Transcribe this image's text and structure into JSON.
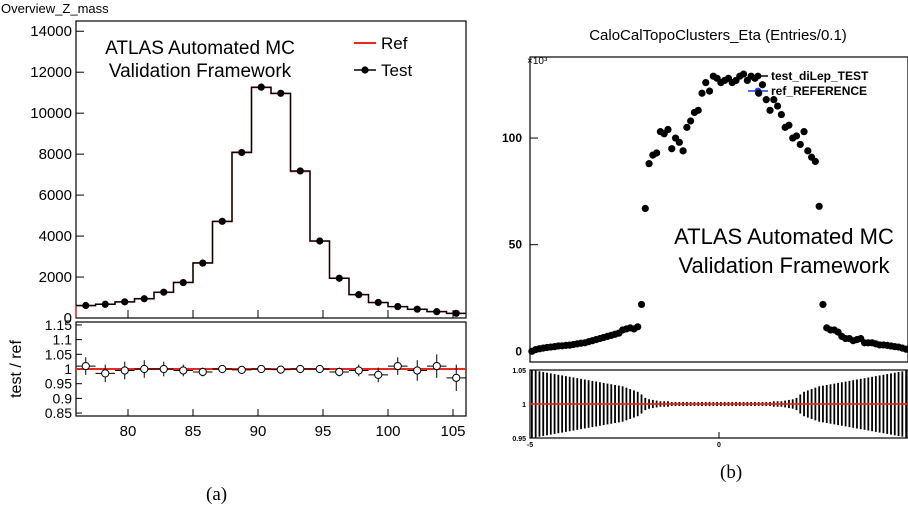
{
  "chart_data": [
    {
      "type": "line",
      "panel_caption": "(a)",
      "title": "Overview_Z_mass",
      "watermark": [
        "ATLAS Automated MC",
        "Validation Framework"
      ],
      "legend": [
        {
          "name": "Ref",
          "style": "line",
          "color": "#e8291c"
        },
        {
          "name": "Test",
          "style": "marker",
          "color": "#000000"
        }
      ],
      "legend_position": "top-right",
      "x": [
        76.75,
        78.25,
        79.75,
        81.25,
        82.75,
        84.25,
        85.75,
        87.25,
        88.75,
        90.25,
        91.75,
        93.25,
        94.75,
        96.25,
        97.75,
        99.25,
        100.75,
        102.25,
        103.75,
        105.25
      ],
      "xlim": [
        76,
        106
      ],
      "x_ticks": [
        80,
        85,
        90,
        95,
        100,
        105
      ],
      "main": {
        "ylim": [
          0,
          14500
        ],
        "y_ticks": [
          0,
          2000,
          4000,
          6000,
          8000,
          10000,
          12000,
          14000
        ],
        "series": [
          {
            "name": "Ref",
            "values": [
              600,
              680,
              780,
              950,
              1250,
              1750,
              2700,
              4700,
              8100,
              11250,
              10950,
              7150,
              3750,
              1950,
              1150,
              750,
              550,
              420,
              320,
              220
            ]
          },
          {
            "name": "Test",
            "values": [
              610,
              670,
              790,
              940,
              1260,
              1730,
              2680,
              4720,
              8080,
              11270,
              10970,
              7180,
              3760,
              1940,
              1140,
              760,
              560,
              430,
              310,
              230
            ]
          }
        ]
      },
      "ratio": {
        "ylabel": "test / ref",
        "ylim": [
          0.84,
          1.16
        ],
        "y_ticks": [
          "0.85",
          "0.9",
          "0.95",
          "1",
          "1.05",
          "1.1",
          "1.15"
        ],
        "reference_line": 1,
        "values": [
          1.01,
          0.985,
          0.995,
          1.0,
          1.0,
          0.995,
          0.99,
          1.0,
          0.997,
          1.0,
          0.998,
          1.0,
          1.0,
          0.99,
          0.995,
          0.98,
          1.01,
          0.995,
          1.01,
          0.97
        ],
        "errors": [
          0.03,
          0.03,
          0.03,
          0.03,
          0.025,
          0.02,
          0.015,
          0.01,
          0.006,
          0.005,
          0.005,
          0.006,
          0.01,
          0.015,
          0.02,
          0.025,
          0.03,
          0.035,
          0.04,
          0.045
        ]
      }
    },
    {
      "type": "scatter",
      "panel_caption": "(b)",
      "title": "CaloCalTopoClusters_Eta (Entries/0.1)",
      "watermark": [
        "ATLAS Automated MC",
        "Validation Framework"
      ],
      "y_multiplier": "×10³",
      "legend": [
        {
          "name": "test_diLep_TEST",
          "color": "#000000"
        },
        {
          "name": "ref_REFERENCE",
          "color": "#1a3cf0"
        }
      ],
      "legend_position": "top-right",
      "x": [
        -4.95,
        -4.85,
        -4.75,
        -4.65,
        -4.55,
        -4.45,
        -4.35,
        -4.25,
        -4.15,
        -4.05,
        -3.95,
        -3.85,
        -3.75,
        -3.65,
        -3.55,
        -3.45,
        -3.35,
        -3.25,
        -3.15,
        -3.05,
        -2.95,
        -2.85,
        -2.75,
        -2.65,
        -2.55,
        -2.45,
        -2.35,
        -2.25,
        -2.15,
        -2.05,
        -1.95,
        -1.85,
        -1.75,
        -1.65,
        -1.55,
        -1.45,
        -1.35,
        -1.25,
        -1.15,
        -1.05,
        -0.95,
        -0.85,
        -0.75,
        -0.65,
        -0.55,
        -0.45,
        -0.35,
        -0.25,
        -0.15,
        -0.05,
        0.05,
        0.15,
        0.25,
        0.35,
        0.45,
        0.55,
        0.65,
        0.75,
        0.85,
        0.95,
        1.05,
        1.15,
        1.25,
        1.35,
        1.45,
        1.55,
        1.65,
        1.75,
        1.85,
        1.95,
        2.05,
        2.15,
        2.25,
        2.35,
        2.45,
        2.55,
        2.65,
        2.75,
        2.85,
        2.95,
        3.05,
        3.15,
        3.25,
        3.35,
        3.45,
        3.55,
        3.65,
        3.75,
        3.85,
        3.95,
        4.05,
        4.15,
        4.25,
        4.35,
        4.45,
        4.55,
        4.65,
        4.75,
        4.85,
        4.95
      ],
      "xlim": [
        -5,
        5
      ],
      "x_ticks": [
        -5,
        0
      ],
      "main": {
        "ylim": [
          -5,
          138
        ],
        "y_ticks": [
          0,
          50,
          100
        ],
        "values": [
          0,
          0.8,
          1.2,
          1.5,
          1.8,
          2.0,
          2.2,
          2.5,
          2.6,
          2.8,
          2.9,
          3.2,
          3.5,
          3.8,
          4.0,
          4.5,
          5.0,
          5.5,
          6.0,
          6.5,
          7.0,
          7.5,
          8.0,
          8.5,
          10,
          10.5,
          11,
          10.5,
          11.5,
          22,
          67,
          88,
          92,
          93,
          103,
          102,
          104,
          95,
          100,
          98,
          94,
          105,
          108,
          112,
          113,
          121,
          126,
          122,
          129,
          128,
          126,
          127,
          128,
          126,
          127,
          129,
          130,
          127,
          129,
          128,
          121,
          125,
          118,
          113,
          118,
          115,
          111,
          105,
          106,
          100,
          101,
          97,
          103,
          94,
          91,
          89,
          68,
          22,
          11,
          10,
          10,
          9,
          7,
          6,
          6,
          5,
          5.5,
          6,
          4,
          4,
          4,
          3.5,
          3,
          3,
          2.8,
          2.5,
          2.2,
          2.0,
          1.5,
          1.0
        ]
      },
      "ratio": {
        "ylim": [
          0.95,
          1.05
        ],
        "y_ticks": [
          "0.95",
          "1",
          "1.05"
        ],
        "reference_line": 1,
        "errors": [
          0.05,
          0.049,
          0.048,
          0.047,
          0.046,
          0.045,
          0.044,
          0.043,
          0.042,
          0.041,
          0.04,
          0.039,
          0.038,
          0.037,
          0.036,
          0.035,
          0.034,
          0.033,
          0.032,
          0.031,
          0.03,
          0.029,
          0.028,
          0.027,
          0.026,
          0.024,
          0.022,
          0.02,
          0.018,
          0.014,
          0.009,
          0.007,
          0.006,
          0.005,
          0.004,
          0.004,
          0.004,
          0.003,
          0.003,
          0.003,
          0.003,
          0.003,
          0.003,
          0.003,
          0.003,
          0.003,
          0.003,
          0.003,
          0.003,
          0.003,
          0.003,
          0.003,
          0.003,
          0.003,
          0.003,
          0.003,
          0.003,
          0.003,
          0.003,
          0.003,
          0.003,
          0.003,
          0.003,
          0.003,
          0.004,
          0.004,
          0.004,
          0.005,
          0.006,
          0.007,
          0.009,
          0.014,
          0.018,
          0.02,
          0.022,
          0.024,
          0.026,
          0.027,
          0.028,
          0.029,
          0.03,
          0.031,
          0.032,
          0.033,
          0.034,
          0.035,
          0.036,
          0.037,
          0.038,
          0.039,
          0.04,
          0.041,
          0.042,
          0.043,
          0.044,
          0.045,
          0.046,
          0.047,
          0.048,
          0.049
        ]
      }
    }
  ]
}
